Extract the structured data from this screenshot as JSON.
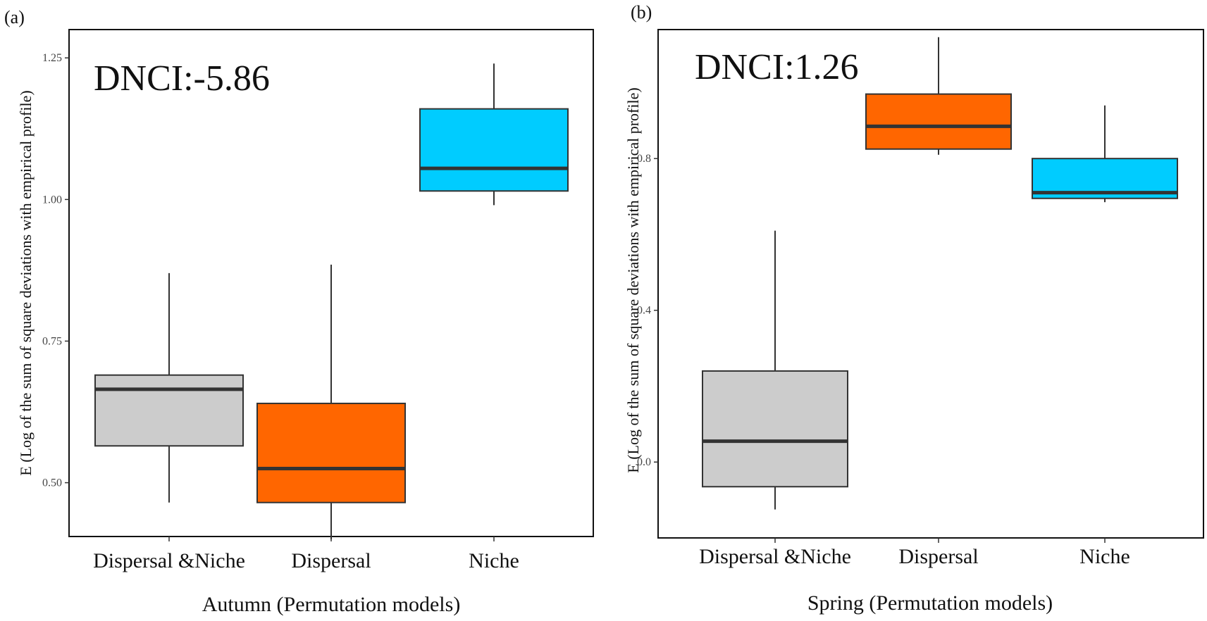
{
  "chart_data": [
    {
      "type": "boxplot",
      "panel_label": "(a)",
      "annotation": "DNCI:-5.86",
      "xlabel": "Autumn (Permutation models)",
      "ylabel": "E (Log of the sum of square deviations with empirical profile)",
      "ylim": [
        0.405,
        1.3
      ],
      "yticks": [
        0.5,
        0.75,
        1.0,
        1.25
      ],
      "ytick_labels": [
        "0.50",
        "0.75",
        "1.00",
        "1.25"
      ],
      "categories": [
        "Dispersal &Niche",
        "Dispersal",
        "Niche"
      ],
      "boxes": [
        {
          "name": "Dispersal &Niche",
          "whisker_low": 0.465,
          "q1": 0.565,
          "median": 0.665,
          "q3": 0.69,
          "whisker_high": 0.87,
          "color": "#cccccc"
        },
        {
          "name": "Dispersal",
          "whisker_low": 0.4,
          "q1": 0.465,
          "median": 0.525,
          "q3": 0.64,
          "whisker_high": 0.885,
          "color": "#ff6600"
        },
        {
          "name": "Niche",
          "whisker_low": 0.99,
          "q1": 1.015,
          "median": 1.055,
          "q3": 1.16,
          "whisker_high": 1.24,
          "color": "#00ccff"
        }
      ]
    },
    {
      "type": "boxplot",
      "panel_label": "(b)",
      "annotation": "DNCI:1.26",
      "xlabel": "Spring (Permutation models)",
      "ylabel": "E (Log of the sum of square deviations with empirical profile)",
      "ylim": [
        -0.2,
        1.14
      ],
      "yticks": [
        0.0,
        0.4,
        0.8
      ],
      "ytick_labels": [
        "0.0",
        "0.4",
        "0.8"
      ],
      "categories": [
        "Dispersal &Niche",
        "Dispersal",
        "Niche"
      ],
      "boxes": [
        {
          "name": "Dispersal &Niche",
          "whisker_low": -0.125,
          "q1": -0.065,
          "median": 0.055,
          "q3": 0.24,
          "whisker_high": 0.61,
          "color": "#cccccc"
        },
        {
          "name": "Dispersal",
          "whisker_low": 0.81,
          "q1": 0.825,
          "median": 0.885,
          "q3": 0.97,
          "whisker_high": 1.12,
          "color": "#ff6600"
        },
        {
          "name": "Niche",
          "whisker_low": 0.685,
          "q1": 0.695,
          "median": 0.71,
          "q3": 0.8,
          "whisker_high": 0.94,
          "color": "#00ccff"
        }
      ]
    }
  ]
}
